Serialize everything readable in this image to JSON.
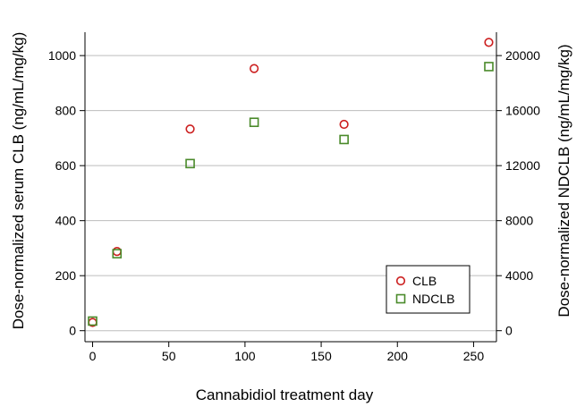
{
  "chart_data": {
    "type": "scatter",
    "title": "",
    "xlabel": "Cannabidiol treatment day",
    "ylabel": "Dose-normalized serum CLB (ng/mL/mg/kg)",
    "y2label": "Dose-normalized NDCLB (ng/mL/mg/kg)",
    "xlim": [
      -5,
      265
    ],
    "ylim": [
      -40,
      1085
    ],
    "y2lim": [
      -800,
      21700
    ],
    "xticks": [
      0,
      50,
      100,
      150,
      200,
      250
    ],
    "yticks": [
      0,
      200,
      400,
      600,
      800,
      1000
    ],
    "y2ticks": [
      0,
      4000,
      8000,
      12000,
      16000,
      20000
    ],
    "grid": "horizontal",
    "legend_position": "bottom-right",
    "series": [
      {
        "name": "CLB",
        "axis": "left",
        "marker": "circle",
        "color": "#cc1f1f",
        "points": [
          {
            "x": 0,
            "y": 30
          },
          {
            "x": 16,
            "y": 288
          },
          {
            "x": 64,
            "y": 733
          },
          {
            "x": 106,
            "y": 953
          },
          {
            "x": 165,
            "y": 750
          },
          {
            "x": 260,
            "y": 1048
          }
        ]
      },
      {
        "name": "NDCLB",
        "axis": "right",
        "marker": "square",
        "color": "#4a8a2a",
        "points": [
          {
            "x": 0,
            "y": 700
          },
          {
            "x": 16,
            "y": 5600
          },
          {
            "x": 64,
            "y": 12150
          },
          {
            "x": 106,
            "y": 15150
          },
          {
            "x": 165,
            "y": 13900
          },
          {
            "x": 260,
            "y": 19200
          }
        ]
      }
    ]
  }
}
